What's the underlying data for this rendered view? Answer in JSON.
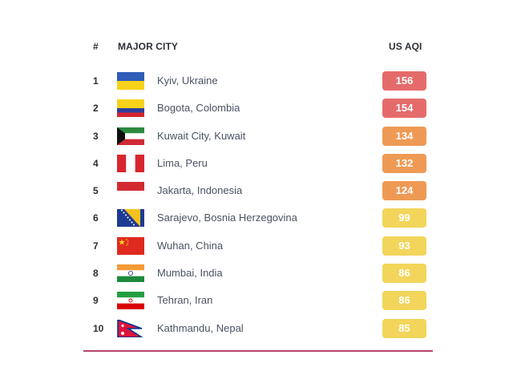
{
  "header": {
    "rank": "#",
    "city": "MAJOR CITY",
    "aqi": "US AQI"
  },
  "colors": {
    "unhealthy": "#e56b6b",
    "sensitive": "#ee9a55",
    "moderate": "#f2d55a",
    "divider": "#b5456a"
  },
  "rows": [
    {
      "rank": "1",
      "city": "Kyiv, Ukraine",
      "aqi": "156",
      "level": "unhealthy",
      "flag_icon": "ukraine-flag-icon"
    },
    {
      "rank": "2",
      "city": "Bogota, Colombia",
      "aqi": "154",
      "level": "unhealthy",
      "flag_icon": "colombia-flag-icon"
    },
    {
      "rank": "3",
      "city": "Kuwait City, Kuwait",
      "aqi": "134",
      "level": "sensitive",
      "flag_icon": "kuwait-flag-icon"
    },
    {
      "rank": "4",
      "city": "Lima, Peru",
      "aqi": "132",
      "level": "sensitive",
      "flag_icon": "peru-flag-icon"
    },
    {
      "rank": "5",
      "city": "Jakarta, Indonesia",
      "aqi": "124",
      "level": "sensitive",
      "flag_icon": "indonesia-flag-icon"
    },
    {
      "rank": "6",
      "city": "Sarajevo, Bosnia Herzegovina",
      "aqi": "99",
      "level": "moderate",
      "flag_icon": "bosnia-flag-icon"
    },
    {
      "rank": "7",
      "city": "Wuhan, China",
      "aqi": "93",
      "level": "moderate",
      "flag_icon": "china-flag-icon"
    },
    {
      "rank": "8",
      "city": "Mumbai, India",
      "aqi": "86",
      "level": "moderate",
      "flag_icon": "india-flag-icon"
    },
    {
      "rank": "9",
      "city": "Tehran, Iran",
      "aqi": "86",
      "level": "moderate",
      "flag_icon": "iran-flag-icon"
    },
    {
      "rank": "10",
      "city": "Kathmandu, Nepal",
      "aqi": "85",
      "level": "moderate",
      "flag_icon": "nepal-flag-icon"
    }
  ]
}
